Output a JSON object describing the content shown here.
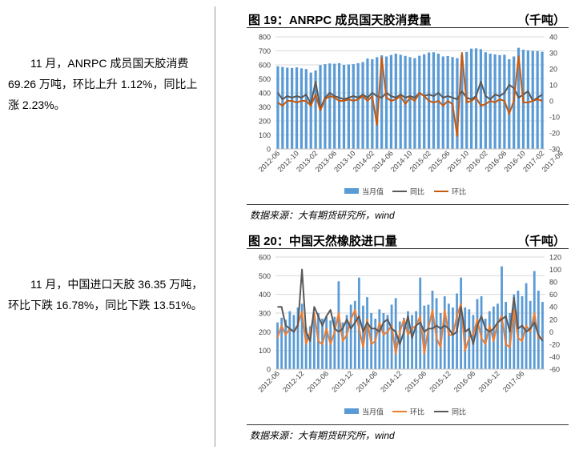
{
  "paragraphs": [
    {
      "lines": [
        "11 月，ANRPC 成员国天胶消费",
        "69.26 万吨，环比上升 1.12%，同比上",
        "涨 2.23%。"
      ]
    },
    {
      "lines": [
        "11 月，中国进口天胶 36.35 万吨，",
        "环比下跌 16.78%，同比下跌 13.51%。"
      ]
    }
  ],
  "figures": [
    {
      "title": "图 19：ANRPC 成员国天胶消费量",
      "unit": "（千吨）",
      "source": "数据来源：大有期货研究所，wind"
    },
    {
      "title": "图 20：中国天然橡胶进口量",
      "unit": "（千吨）",
      "source": "数据来源：大有期货研究所，wind"
    }
  ],
  "chart_data": [
    {
      "type": "bar",
      "title": "图 19：ANRPC 成员国天胶消费量",
      "unit": "千吨",
      "y_left": {
        "min": 0,
        "max": 800,
        "ticks": [
          0,
          100,
          200,
          300,
          400,
          500,
          600,
          700,
          800
        ]
      },
      "y_right": {
        "min": -30,
        "max": 40,
        "ticks": [
          -30,
          -20,
          -10,
          0,
          10,
          20,
          30,
          40
        ]
      },
      "x_tick_labels": [
        "2012-06",
        "2012-10",
        "2013-02",
        "2013-06",
        "2013-10",
        "2014-02",
        "2014-06",
        "2014-10",
        "2015-02",
        "2015-06",
        "2015-10",
        "2016-02",
        "2016-06",
        "2016-10",
        "2017-02",
        "2017-06"
      ],
      "x_tick_every": 4,
      "grid": true,
      "legend_position": "bottom",
      "series": [
        {
          "name": "当月值",
          "kind": "bar",
          "axis": "left",
          "color": "#5b9bd5",
          "values": [
            590,
            585,
            580,
            578,
            582,
            575,
            570,
            545,
            560,
            598,
            605,
            610,
            608,
            612,
            600,
            603,
            605,
            612,
            620,
            645,
            640,
            655,
            668,
            660,
            670,
            680,
            672,
            664,
            655,
            648,
            665,
            675,
            688,
            690,
            680,
            660,
            663,
            656,
            648,
            668,
            692,
            716,
            718,
            712,
            690,
            680,
            675,
            670,
            672,
            640,
            660,
            722,
            708,
            703,
            700,
            698,
            693
          ]
        },
        {
          "name": "同比",
          "kind": "line",
          "axis": "right",
          "color": "#595959",
          "values": [
            5,
            1,
            3,
            2,
            3,
            2,
            4,
            -2,
            12,
            -5,
            2,
            5,
            3,
            2,
            1,
            2,
            3,
            2,
            4,
            2,
            5,
            3,
            2,
            5,
            3,
            2,
            4,
            2,
            3,
            2,
            5,
            3,
            4,
            3,
            5,
            2,
            3,
            2,
            1,
            6,
            2,
            1,
            3,
            12,
            3,
            1,
            4,
            3,
            5,
            10,
            8,
            2,
            4,
            6,
            0,
            2,
            4
          ]
        },
        {
          "name": "环比",
          "kind": "line",
          "axis": "right",
          "color": "#c55a11",
          "values": [
            -1,
            -3,
            0,
            0,
            -1,
            0,
            0,
            -3,
            4,
            -6,
            1,
            3,
            2,
            0,
            0,
            1,
            0,
            1,
            3,
            0,
            3,
            -15,
            27,
            2,
            0,
            1,
            3,
            -2,
            2,
            0,
            5,
            3,
            0,
            -1,
            0,
            -3,
            0,
            -2,
            -22,
            30,
            -1,
            0,
            2,
            -3,
            -2,
            0,
            -1,
            1,
            0,
            -8,
            0,
            28,
            -1,
            -1,
            0,
            1,
            0
          ]
        }
      ]
    },
    {
      "type": "bar",
      "title": "图 20：中国天然橡胶进口量",
      "unit": "千吨",
      "y_left": {
        "min": 0,
        "max": 600,
        "ticks": [
          0,
          100,
          200,
          300,
          400,
          500,
          600
        ]
      },
      "y_right": {
        "min": -60,
        "max": 120,
        "ticks": [
          -60,
          -40,
          -20,
          0,
          20,
          40,
          60,
          80,
          100,
          120
        ]
      },
      "x_tick_labels": [
        "2012-06",
        "2012-12",
        "2013-06",
        "2013-12",
        "2014-06",
        "2014-12",
        "2015-06",
        "2015-12",
        "2016-06",
        "2016-12",
        "2017-06"
      ],
      "x_tick_every": 6,
      "grid": true,
      "legend_position": "bottom",
      "series": [
        {
          "name": "当月值",
          "kind": "bar",
          "axis": "left",
          "color": "#5b9bd5",
          "values": [
            250,
            275,
            265,
            310,
            290,
            330,
            350,
            220,
            230,
            295,
            300,
            270,
            280,
            260,
            280,
            470,
            250,
            290,
            345,
            365,
            490,
            340,
            385,
            300,
            270,
            320,
            300,
            290,
            345,
            380,
            255,
            275,
            310,
            290,
            310,
            490,
            340,
            345,
            420,
            380,
            300,
            390,
            350,
            330,
            405,
            490,
            330,
            320,
            290,
            375,
            390,
            270,
            310,
            335,
            350,
            550,
            360,
            300,
            400,
            420,
            390,
            460,
            365,
            525,
            420,
            360
          ]
        },
        {
          "name": "环比",
          "kind": "line",
          "axis": "right",
          "color": "#ed7d31",
          "values": [
            -10,
            10,
            -5,
            5,
            0,
            12,
            32,
            -20,
            0,
            30,
            -15,
            -20,
            5,
            -20,
            0,
            30,
            -15,
            -5,
            20,
            35,
            5,
            -25,
            20,
            -20,
            -15,
            15,
            -5,
            0,
            10,
            -35,
            0,
            20,
            -5,
            5,
            10,
            25,
            -35,
            5,
            35,
            -10,
            -25,
            35,
            -5,
            -5,
            25,
            45,
            -30,
            -10,
            -5,
            20,
            -10,
            -20,
            10,
            -15,
            15,
            25,
            -20,
            -25,
            35,
            -10,
            -15,
            10,
            0,
            30,
            -10,
            -10
          ]
        },
        {
          "name": "同比",
          "kind": "line",
          "axis": "right",
          "color": "#595959",
          "values": [
            40,
            40,
            10,
            5,
            0,
            10,
            100,
            0,
            -15,
            40,
            25,
            10,
            25,
            35,
            5,
            0,
            5,
            20,
            5,
            15,
            25,
            0,
            15,
            5,
            5,
            0,
            15,
            20,
            5,
            0,
            -20,
            0,
            25,
            -10,
            10,
            15,
            0,
            5,
            5,
            10,
            5,
            10,
            5,
            -5,
            0,
            40,
            0,
            5,
            -20,
            10,
            25,
            5,
            0,
            5,
            15,
            20,
            25,
            0,
            55,
            5,
            10,
            0,
            5,
            15,
            -5,
            -15
          ]
        }
      ]
    }
  ]
}
